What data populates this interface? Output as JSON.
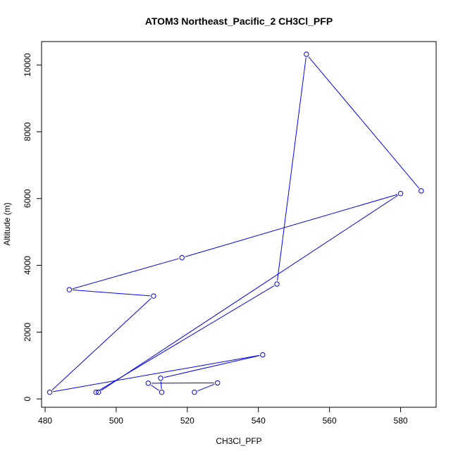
{
  "chart_data": {
    "type": "line",
    "title": "ATOM3 Northeast_Pacific_2 CH3Cl_PFP",
    "xlabel": "CH3Cl_PFP",
    "ylabel": "Altitude (m)",
    "xlim": [
      479,
      590
    ],
    "ylim": [
      -250,
      10700
    ],
    "x_ticks": [
      480,
      500,
      520,
      540,
      560,
      580
    ],
    "y_ticks": [
      0,
      2000,
      4000,
      6000,
      8000,
      10000
    ],
    "grid": false,
    "series_color": "#0000ff",
    "points": [
      {
        "x": 522.0,
        "y": 200
      },
      {
        "x": 528.5,
        "y": 480
      },
      {
        "x": 509.0,
        "y": 470
      },
      {
        "x": 512.8,
        "y": 200
      },
      {
        "x": 512.5,
        "y": 620
      },
      {
        "x": 541.2,
        "y": 1320
      },
      {
        "x": 481.3,
        "y": 200
      },
      {
        "x": 510.5,
        "y": 3080
      },
      {
        "x": 486.8,
        "y": 3270
      },
      {
        "x": 518.5,
        "y": 4230
      },
      {
        "x": 580.0,
        "y": 6150
      },
      {
        "x": 495.0,
        "y": 200
      },
      {
        "x": 494.3,
        "y": 200
      },
      {
        "x": 545.2,
        "y": 3440
      },
      {
        "x": 553.5,
        "y": 10320
      },
      {
        "x": 585.8,
        "y": 6230
      }
    ]
  }
}
